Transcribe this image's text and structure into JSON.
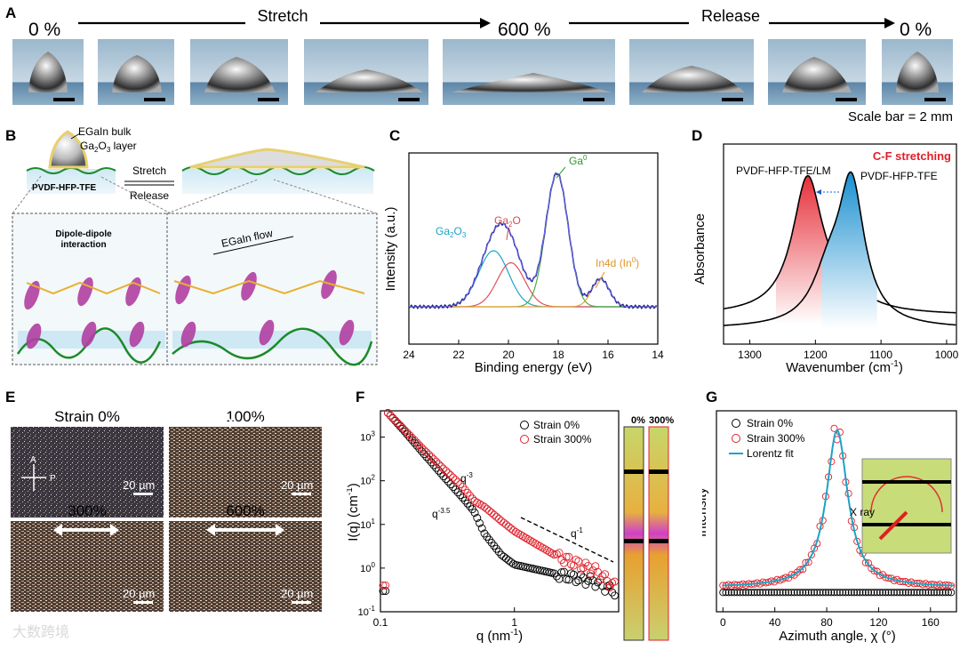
{
  "panel_labels": {
    "A": "A",
    "B": "B",
    "C": "C",
    "D": "D",
    "E": "E",
    "F": "F",
    "G": "G"
  },
  "panel_a": {
    "start_label": "0 %",
    "stretch_label": "Stretch",
    "mid_label": "600 %",
    "release_label": "Release",
    "end_label": "0 %",
    "scale_note": "Scale bar = 2 mm"
  },
  "panel_b": {
    "bulk_label": "EGaIn bulk",
    "layer_label_pre": "Ga",
    "layer_sub1": "2",
    "layer_label_mid": "O",
    "layer_sub2": "3",
    "layer_label_post": " layer",
    "substrate_label": "PVDF-HFP-TFE",
    "stretch": "Stretch",
    "release": "Release",
    "dipole_label_1": "Dipole-dipole",
    "dipole_label_2": "interaction",
    "flow_label": "EGaIn flow"
  },
  "panel_c": {
    "ylabel": "Intensity (a.u.)",
    "xlabel": "Binding energy (eV)",
    "xticks": [
      "24",
      "22",
      "20",
      "18",
      "16",
      "14"
    ],
    "peak_labels": {
      "ga0": "Ga",
      "ga0_sup": "0",
      "ga2o": "Ga",
      "ga2o_sub": "2",
      "ga2o_post": "O",
      "ga2o3": "Ga",
      "ga2o3_sub1": "2",
      "ga2o3_mid": "O",
      "ga2o3_sub2": "3",
      "in4d": "In4d (In",
      "in4d_sup": "0",
      "in4d_post": ")"
    },
    "chart_data": {
      "type": "line",
      "title": "",
      "xlabel": "Binding energy (eV)",
      "ylabel": "Intensity (a.u.)",
      "xlim": [
        24,
        14
      ],
      "components": [
        {
          "name": "Ga2O3",
          "center": 20.6,
          "height": 0.42,
          "width": 0.6,
          "color": "#1ba3c6"
        },
        {
          "name": "Ga2O",
          "center": 19.9,
          "height": 0.33,
          "width": 0.55,
          "color": "#e0505a"
        },
        {
          "name": "Ga0",
          "center": 18.05,
          "height": 1.0,
          "width": 0.45,
          "color": "#4cae4c"
        },
        {
          "name": "In4d",
          "center": 16.3,
          "height": 0.21,
          "width": 0.35,
          "color": "#e8a23a"
        }
      ]
    }
  },
  "panel_d": {
    "title": "C-F stretching",
    "label_lm": "PVDF-HFP-TFE/LM",
    "label_pure": "PVDF-HFP-TFE",
    "ylabel": "Absorbance",
    "xlabel_pre": "Wavenumber (cm",
    "xlabel_sup": "-1",
    "xlabel_post": ")",
    "xticks": [
      "1300",
      "1200",
      "1100",
      "1000"
    ],
    "chart_data": {
      "type": "line",
      "xlim": [
        1340,
        985
      ],
      "series": [
        {
          "name": "PVDF-HFP-TFE/LM",
          "peak": 1212
        },
        {
          "name": "PVDF-HFP-TFE",
          "peak": 1145
        }
      ]
    }
  },
  "panel_e": {
    "img1": "Strain 0%",
    "img2": "100%",
    "img3": "300%",
    "img4": "600%",
    "scale": "20 µm",
    "axis_a": "A",
    "axis_p": "P"
  },
  "panel_f": {
    "legend_0": "Strain 0%",
    "legend_300": "Strain 300%",
    "ylabel": "I(q) (cm",
    "ylabel_sup": "-1",
    "ylabel_post": ")",
    "xlabel": "q (nm",
    "xlabel_sup": "-1",
    "xlabel_post": ")",
    "yticks": [
      "10",
      "10",
      "10",
      "10",
      "10",
      "10"
    ],
    "ytick_exp": [
      "3",
      "2",
      "1",
      "0",
      "-1"
    ],
    "ytick_labels_extra": [
      "10⁻¹"
    ],
    "xticks": [
      "0.1",
      "1"
    ],
    "slope_1": "q",
    "slope_1_sup": "-3",
    "slope_2": "q",
    "slope_2_sup": "-3.5",
    "slope_3": "q",
    "slope_3_sup": "-1",
    "inset_0": "0%",
    "inset_300": "300%",
    "chart_data": {
      "type": "scatter",
      "xscale": "log",
      "yscale": "log",
      "xlim": [
        0.1,
        6
      ],
      "ylim": [
        0.1,
        4000
      ],
      "series": [
        {
          "name": "Strain 0%",
          "points": [
            [
              0.11,
              4000
            ],
            [
              0.15,
              1400
            ],
            [
              0.2,
              500
            ],
            [
              0.3,
              120
            ],
            [
              0.4,
              45
            ],
            [
              0.5,
              20
            ],
            [
              0.6,
              6
            ],
            [
              0.8,
              2
            ],
            [
              1.0,
              1.2
            ],
            [
              2.0,
              0.75
            ],
            [
              4.0,
              0.5
            ],
            [
              5.5,
              0.3
            ]
          ]
        },
        {
          "name": "Strain 300%",
          "points": [
            [
              0.11,
              4000
            ],
            [
              0.15,
              1500
            ],
            [
              0.2,
              600
            ],
            [
              0.3,
              180
            ],
            [
              0.4,
              80
            ],
            [
              0.5,
              35
            ],
            [
              0.6,
              25
            ],
            [
              0.8,
              12
            ],
            [
              1.0,
              7
            ],
            [
              2.0,
              2
            ],
            [
              4.0,
              0.9
            ],
            [
              5.5,
              0.4
            ]
          ]
        }
      ]
    }
  },
  "panel_g": {
    "legend_0": "Strain 0%",
    "legend_300": "Strain 300%",
    "legend_fit": "Lorentz fit",
    "ylabel": "Intensity",
    "xlabel": "Azimuth angle, χ (°)",
    "xticks": [
      "0",
      "40",
      "80",
      "120",
      "160"
    ],
    "xray": "X ray",
    "chart_data": {
      "type": "scatter",
      "xlim": [
        -5,
        180
      ],
      "series": [
        {
          "name": "Strain 300%",
          "model": "lorentz",
          "center": 88,
          "height": 1.0,
          "gamma": 10,
          "baseline": 0.05
        },
        {
          "name": "Strain 0%",
          "model": "flat",
          "level": 0.02
        },
        {
          "name": "Lorentz fit",
          "model": "lorentz",
          "center": 88,
          "height": 1.0,
          "gamma": 10,
          "baseline": 0.05
        }
      ]
    }
  },
  "watermark": "大数跨境"
}
